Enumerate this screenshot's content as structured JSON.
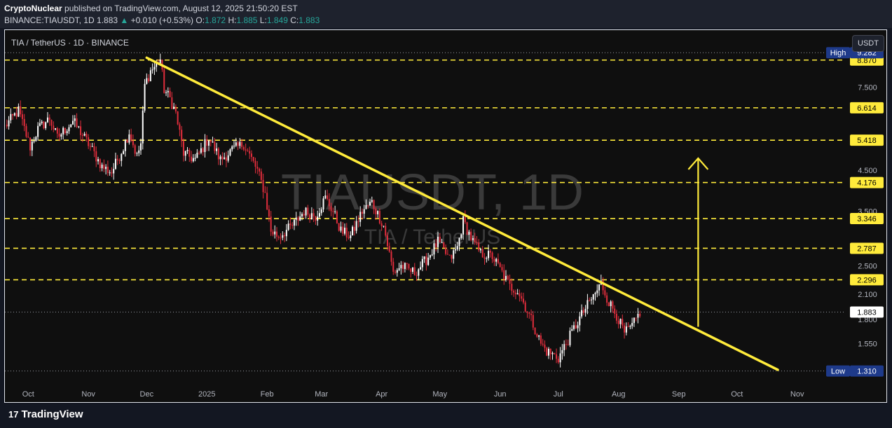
{
  "header": {
    "publisher": "CryptoNuclear",
    "published_text": " published on TradingView.com, August 12, 2025 21:50:20 EST",
    "symbol": "BINANCE:TIAUSDT, 1D",
    "last": "1.883",
    "change": "+0.010 (+0.53%)",
    "o_label": "O:",
    "o": "1.872",
    "h_label": "H:",
    "h": "1.885",
    "l_label": "L:",
    "l": "1.849",
    "c_label": "C:",
    "c": "1.883"
  },
  "chart_title": "TIA / TetherUS · 1D · BINANCE",
  "currency_button": "USDT",
  "watermark": {
    "main": "TIAUSDT, 1D",
    "sub": "TIA / TetherUS"
  },
  "footer": {
    "brand": "TradingView",
    "brand_mark": "17"
  },
  "colors": {
    "background": "#0f0f0f",
    "up": "#ffffff",
    "down": "#e02d3c",
    "trendline": "#ffeb3b",
    "level_line": "#ffeb3b",
    "level_label_bg": "#ffeb3b",
    "price_label_bg": "#ffffff",
    "extreme_label_bg": "#1e3a8a"
  },
  "chart_data": {
    "type": "candlestick",
    "scale": "log",
    "ylim": [
      1.2,
      9.7
    ],
    "x_range": [
      "2024-09-19",
      "2025-11-26"
    ],
    "x_ticks": [
      {
        "label": "Oct",
        "date": "2024-10-01"
      },
      {
        "label": "Nov",
        "date": "2024-11-01"
      },
      {
        "label": "Dec",
        "date": "2024-12-01"
      },
      {
        "label": "2025",
        "date": "2025-01-01"
      },
      {
        "label": "Feb",
        "date": "2025-02-01"
      },
      {
        "label": "Mar",
        "date": "2025-03-01"
      },
      {
        "label": "Apr",
        "date": "2025-04-01"
      },
      {
        "label": "May",
        "date": "2025-05-01"
      },
      {
        "label": "Jun",
        "date": "2025-06-01"
      },
      {
        "label": "Jul",
        "date": "2025-07-01"
      },
      {
        "label": "Aug",
        "date": "2025-08-01"
      },
      {
        "label": "Sep",
        "date": "2025-09-01"
      },
      {
        "label": "Oct",
        "date": "2025-10-01"
      },
      {
        "label": "Nov",
        "date": "2025-11-01"
      }
    ],
    "y_ticks": [
      7.5,
      4.5,
      3.5,
      2.8,
      2.5,
      2.1,
      1.8,
      1.55
    ],
    "y_tick_labels": [
      "7.500",
      "4.500",
      "3.500",
      "2.800",
      "2.500",
      "2.100",
      "1.800",
      "1.550"
    ],
    "levels": [
      8.87,
      6.614,
      5.418,
      4.176,
      3.346,
      2.787,
      2.296
    ],
    "level_labels": [
      "8.870",
      "6.614",
      "5.418",
      "4.176",
      "3.346",
      "2.787",
      "2.296"
    ],
    "high": {
      "label": "High",
      "value": 9.282,
      "value_label": "9.282"
    },
    "low": {
      "label": "Low",
      "value": 1.31,
      "value_label": "1.310"
    },
    "last_price": {
      "value": 1.883,
      "value_label": "1.883"
    },
    "trendline": [
      {
        "date": "2024-12-01",
        "price": 9.0
      },
      {
        "date": "2025-10-22",
        "price": 1.32
      }
    ],
    "target_arrow": {
      "date": "2025-09-11",
      "from": 1.72,
      "to": 4.85
    },
    "anchors": [
      [
        "2024-09-19",
        5.9
      ],
      [
        "2024-09-26",
        6.5
      ],
      [
        "2024-10-02",
        5.2
      ],
      [
        "2024-10-06",
        5.8
      ],
      [
        "2024-10-12",
        6.2
      ],
      [
        "2024-10-16",
        5.5
      ],
      [
        "2024-10-24",
        6.1
      ],
      [
        "2024-10-28",
        5.7
      ],
      [
        "2024-11-02",
        5.2
      ],
      [
        "2024-11-08",
        4.6
      ],
      [
        "2024-11-13",
        4.45
      ],
      [
        "2024-11-19",
        5.2
      ],
      [
        "2024-11-22",
        5.7
      ],
      [
        "2024-11-26",
        4.9
      ],
      [
        "2024-11-28",
        5.3
      ],
      [
        "2024-11-30",
        7.6
      ],
      [
        "2024-12-03",
        8.3
      ],
      [
        "2024-12-06",
        8.6
      ],
      [
        "2024-12-08",
        8.9
      ],
      [
        "2024-12-10",
        7.4
      ],
      [
        "2024-12-13",
        7.0
      ],
      [
        "2024-12-16",
        6.4
      ],
      [
        "2024-12-20",
        5.0
      ],
      [
        "2024-12-26",
        4.8
      ],
      [
        "2025-01-02",
        5.5
      ],
      [
        "2025-01-08",
        4.8
      ],
      [
        "2025-01-14",
        5.1
      ],
      [
        "2025-01-20",
        5.3
      ],
      [
        "2025-01-27",
        4.5
      ],
      [
        "2025-01-31",
        3.9
      ],
      [
        "2025-02-03",
        3.1
      ],
      [
        "2025-02-07",
        3.0
      ],
      [
        "2025-02-14",
        3.2
      ],
      [
        "2025-02-20",
        3.5
      ],
      [
        "2025-02-26",
        3.4
      ],
      [
        "2025-03-03",
        3.8
      ],
      [
        "2025-03-07",
        3.5
      ],
      [
        "2025-03-11",
        3.1
      ],
      [
        "2025-03-16",
        3.0
      ],
      [
        "2025-03-22",
        3.5
      ],
      [
        "2025-03-27",
        3.7
      ],
      [
        "2025-04-02",
        3.2
      ],
      [
        "2025-04-07",
        2.4
      ],
      [
        "2025-04-11",
        2.5
      ],
      [
        "2025-04-18",
        2.4
      ],
      [
        "2025-04-24",
        2.6
      ],
      [
        "2025-04-30",
        2.9
      ],
      [
        "2025-05-06",
        2.6
      ],
      [
        "2025-05-10",
        2.8
      ],
      [
        "2025-05-13",
        3.3
      ],
      [
        "2025-05-18",
        2.9
      ],
      [
        "2025-05-22",
        2.7
      ],
      [
        "2025-05-28",
        2.65
      ],
      [
        "2025-06-02",
        2.4
      ],
      [
        "2025-06-06",
        2.2
      ],
      [
        "2025-06-10",
        2.15
      ],
      [
        "2025-06-14",
        1.95
      ],
      [
        "2025-06-18",
        1.75
      ],
      [
        "2025-06-22",
        1.55
      ],
      [
        "2025-06-25",
        1.48
      ],
      [
        "2025-06-28",
        1.45
      ],
      [
        "2025-07-01",
        1.42
      ],
      [
        "2025-07-05",
        1.55
      ],
      [
        "2025-07-09",
        1.7
      ],
      [
        "2025-07-13",
        1.85
      ],
      [
        "2025-07-17",
        2.0
      ],
      [
        "2025-07-21",
        2.15
      ],
      [
        "2025-07-23",
        2.25
      ],
      [
        "2025-07-27",
        2.0
      ],
      [
        "2025-07-31",
        1.85
      ],
      [
        "2025-08-04",
        1.65
      ],
      [
        "2025-08-08",
        1.72
      ],
      [
        "2025-08-12",
        1.883
      ]
    ]
  }
}
